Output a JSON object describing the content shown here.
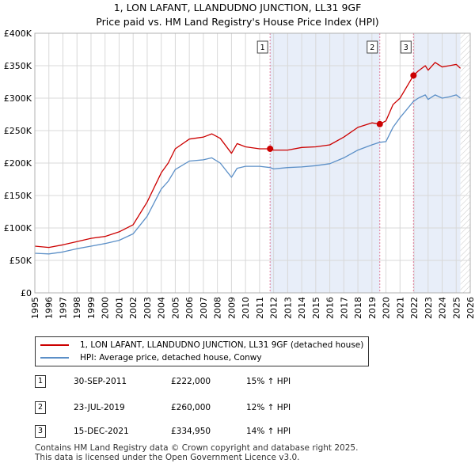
{
  "title": "1, LON LAFANT, LLANDUDNO JUNCTION, LL31 9GF",
  "subtitle": "Price paid vs. HM Land Registry's House Price Index (HPI)",
  "colors": {
    "property": "#cc0000",
    "hpi": "#5b8fc7",
    "shade": "#e8eef9",
    "vline": "#e07a9a"
  },
  "chart_data": {
    "type": "line",
    "title": "1, LON LAFANT, LLANDUDNO JUNCTION, LL31 9GF",
    "subtitle": "Price paid vs. HM Land Registry's House Price Index (HPI)",
    "xlabel": "",
    "ylabel": "",
    "xlim": [
      1995,
      2026
    ],
    "ylim": [
      0,
      400000
    ],
    "y_ticks": [
      {
        "value": 0,
        "label": "£0"
      },
      {
        "value": 50000,
        "label": "£50K"
      },
      {
        "value": 100000,
        "label": "£100K"
      },
      {
        "value": 150000,
        "label": "£150K"
      },
      {
        "value": 200000,
        "label": "£200K"
      },
      {
        "value": 250000,
        "label": "£250K"
      },
      {
        "value": 300000,
        "label": "£300K"
      },
      {
        "value": 350000,
        "label": "£350K"
      },
      {
        "value": 400000,
        "label": "£400K"
      }
    ],
    "x_ticks": [
      "1995",
      "1996",
      "1997",
      "1998",
      "1999",
      "2000",
      "2001",
      "2002",
      "2003",
      "2004",
      "2005",
      "2006",
      "2007",
      "2008",
      "2009",
      "2010",
      "2011",
      "2012",
      "2013",
      "2014",
      "2015",
      "2016",
      "2017",
      "2018",
      "2019",
      "2020",
      "2021",
      "2022",
      "2023",
      "2024",
      "2025",
      "2026"
    ],
    "series": [
      {
        "name": "1, LON LAFANT, LLANDUDNO JUNCTION, LL31 9GF (detached house)",
        "x": [
          1995,
          1996,
          1997,
          1998,
          1999,
          2000,
          2001,
          2002,
          2003,
          2004,
          2004.5,
          2005,
          2006,
          2007,
          2007.6,
          2008.2,
          2009,
          2009.4,
          2010,
          2011,
          2011.75,
          2012,
          2013,
          2014,
          2015,
          2016,
          2017,
          2018,
          2019,
          2019.56,
          2020,
          2020.5,
          2021,
          2021.96,
          2022.3,
          2022.8,
          2023,
          2023.5,
          2024,
          2024.5,
          2025,
          2025.3
        ],
        "values": [
          72000,
          70000,
          74000,
          79000,
          84000,
          87000,
          94000,
          105000,
          140000,
          185000,
          200000,
          222000,
          237000,
          240000,
          245000,
          238000,
          215000,
          230000,
          225000,
          222000,
          222000,
          220000,
          220000,
          224000,
          225000,
          228000,
          240000,
          255000,
          262000,
          260000,
          265000,
          290000,
          300000,
          334950,
          342000,
          350000,
          343000,
          355000,
          348000,
          350000,
          352000,
          346000
        ]
      },
      {
        "name": "HPI: Average price, detached house, Conwy",
        "x": [
          1995,
          1996,
          1997,
          1998,
          1999,
          2000,
          2001,
          2002,
          2003,
          2004,
          2004.5,
          2005,
          2006,
          2007,
          2007.6,
          2008.2,
          2009,
          2009.4,
          2010,
          2011,
          2011.75,
          2012,
          2013,
          2014,
          2015,
          2016,
          2017,
          2018,
          2019,
          2019.56,
          2020,
          2020.5,
          2021,
          2021.96,
          2022.3,
          2022.8,
          2023,
          2023.5,
          2024,
          2024.5,
          2025,
          2025.3
        ],
        "values": [
          61000,
          60000,
          63000,
          68000,
          72000,
          76000,
          81000,
          91000,
          118000,
          160000,
          172000,
          190000,
          203000,
          205000,
          208000,
          200000,
          178000,
          192000,
          195000,
          195000,
          193000,
          191000,
          193000,
          194000,
          196000,
          199000,
          208000,
          220000,
          228000,
          232000,
          233000,
          255000,
          270000,
          295000,
          300000,
          305000,
          298000,
          305000,
          300000,
          302000,
          305000,
          300000
        ]
      }
    ],
    "sales": [
      {
        "label": "1",
        "x": 2011.75,
        "date": "30-SEP-2011",
        "price": "£222,000",
        "value": 222000,
        "delta": "15% ↑ HPI"
      },
      {
        "label": "2",
        "x": 2019.56,
        "date": "23-JUL-2019",
        "price": "£260,000",
        "value": 260000,
        "delta": "12% ↑ HPI"
      },
      {
        "label": "3",
        "x": 2021.96,
        "date": "15-DEC-2021",
        "price": "£334,950",
        "value": 334950,
        "delta": "14% ↑ HPI"
      }
    ],
    "shaded_ranges": [
      [
        2011.75,
        2019.56
      ],
      [
        2021.96,
        2025.3
      ]
    ],
    "hatch_from": 2025.3,
    "legend": {
      "position": "below-chart"
    }
  },
  "footer": {
    "line1": "Contains HM Land Registry data © Crown copyright and database right 2025.",
    "line2": "This data is licensed under the Open Government Licence v3.0."
  }
}
